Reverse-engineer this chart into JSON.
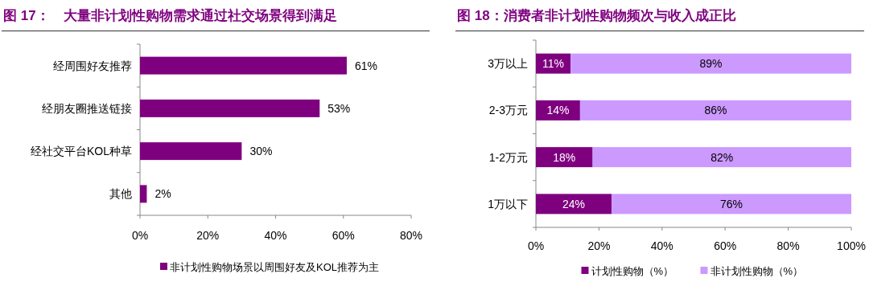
{
  "chart_data": [
    {
      "type": "bar",
      "orientation": "horizontal",
      "title": "图 17：　大量非计划性购物需求通过社交场景得到满足",
      "categories": [
        "经周围好友推荐",
        "经朋友圈推送链接",
        "经社交平台KOL种草",
        "其他"
      ],
      "series": [
        {
          "name": "非计划性购物场景以周围好友及KOL推荐为主",
          "color": "#7f007f",
          "values": [
            61,
            53,
            30,
            2
          ],
          "value_labels": [
            "61%",
            "53%",
            "30%",
            "2%"
          ]
        }
      ],
      "xlim": [
        0,
        80
      ],
      "xticks": [
        {
          "value": 0,
          "label": "0%"
        },
        {
          "value": 20,
          "label": "20%"
        },
        {
          "value": 40,
          "label": "40%"
        },
        {
          "value": 60,
          "label": "60%"
        },
        {
          "value": 80,
          "label": "80%"
        }
      ],
      "legend": "bottom",
      "grid": false
    },
    {
      "type": "bar",
      "orientation": "horizontal",
      "stacked": true,
      "title": "图 18：消费者非计划性购物频次与收入成正比",
      "categories": [
        "3万以上",
        "2-3万元",
        "1-2万元",
        "1万以下"
      ],
      "series": [
        {
          "name": "计划性购物（%）",
          "color": "#7f007f",
          "values": [
            11,
            14,
            18,
            24
          ],
          "value_labels": [
            "11%",
            "14%",
            "18%",
            "24%"
          ]
        },
        {
          "name": "非计划性购物（%）",
          "color": "#cc99ff",
          "values": [
            89,
            86,
            82,
            76
          ],
          "value_labels": [
            "89%",
            "86%",
            "82%",
            "76%"
          ]
        }
      ],
      "xlim": [
        0,
        100
      ],
      "xticks": [
        {
          "value": 0,
          "label": "0%"
        },
        {
          "value": 20,
          "label": "20%"
        },
        {
          "value": 40,
          "label": "40%"
        },
        {
          "value": 60,
          "label": "60%"
        },
        {
          "value": 80,
          "label": "80%"
        },
        {
          "value": 100,
          "label": "100%"
        }
      ],
      "legend": "bottom",
      "grid": false
    }
  ]
}
